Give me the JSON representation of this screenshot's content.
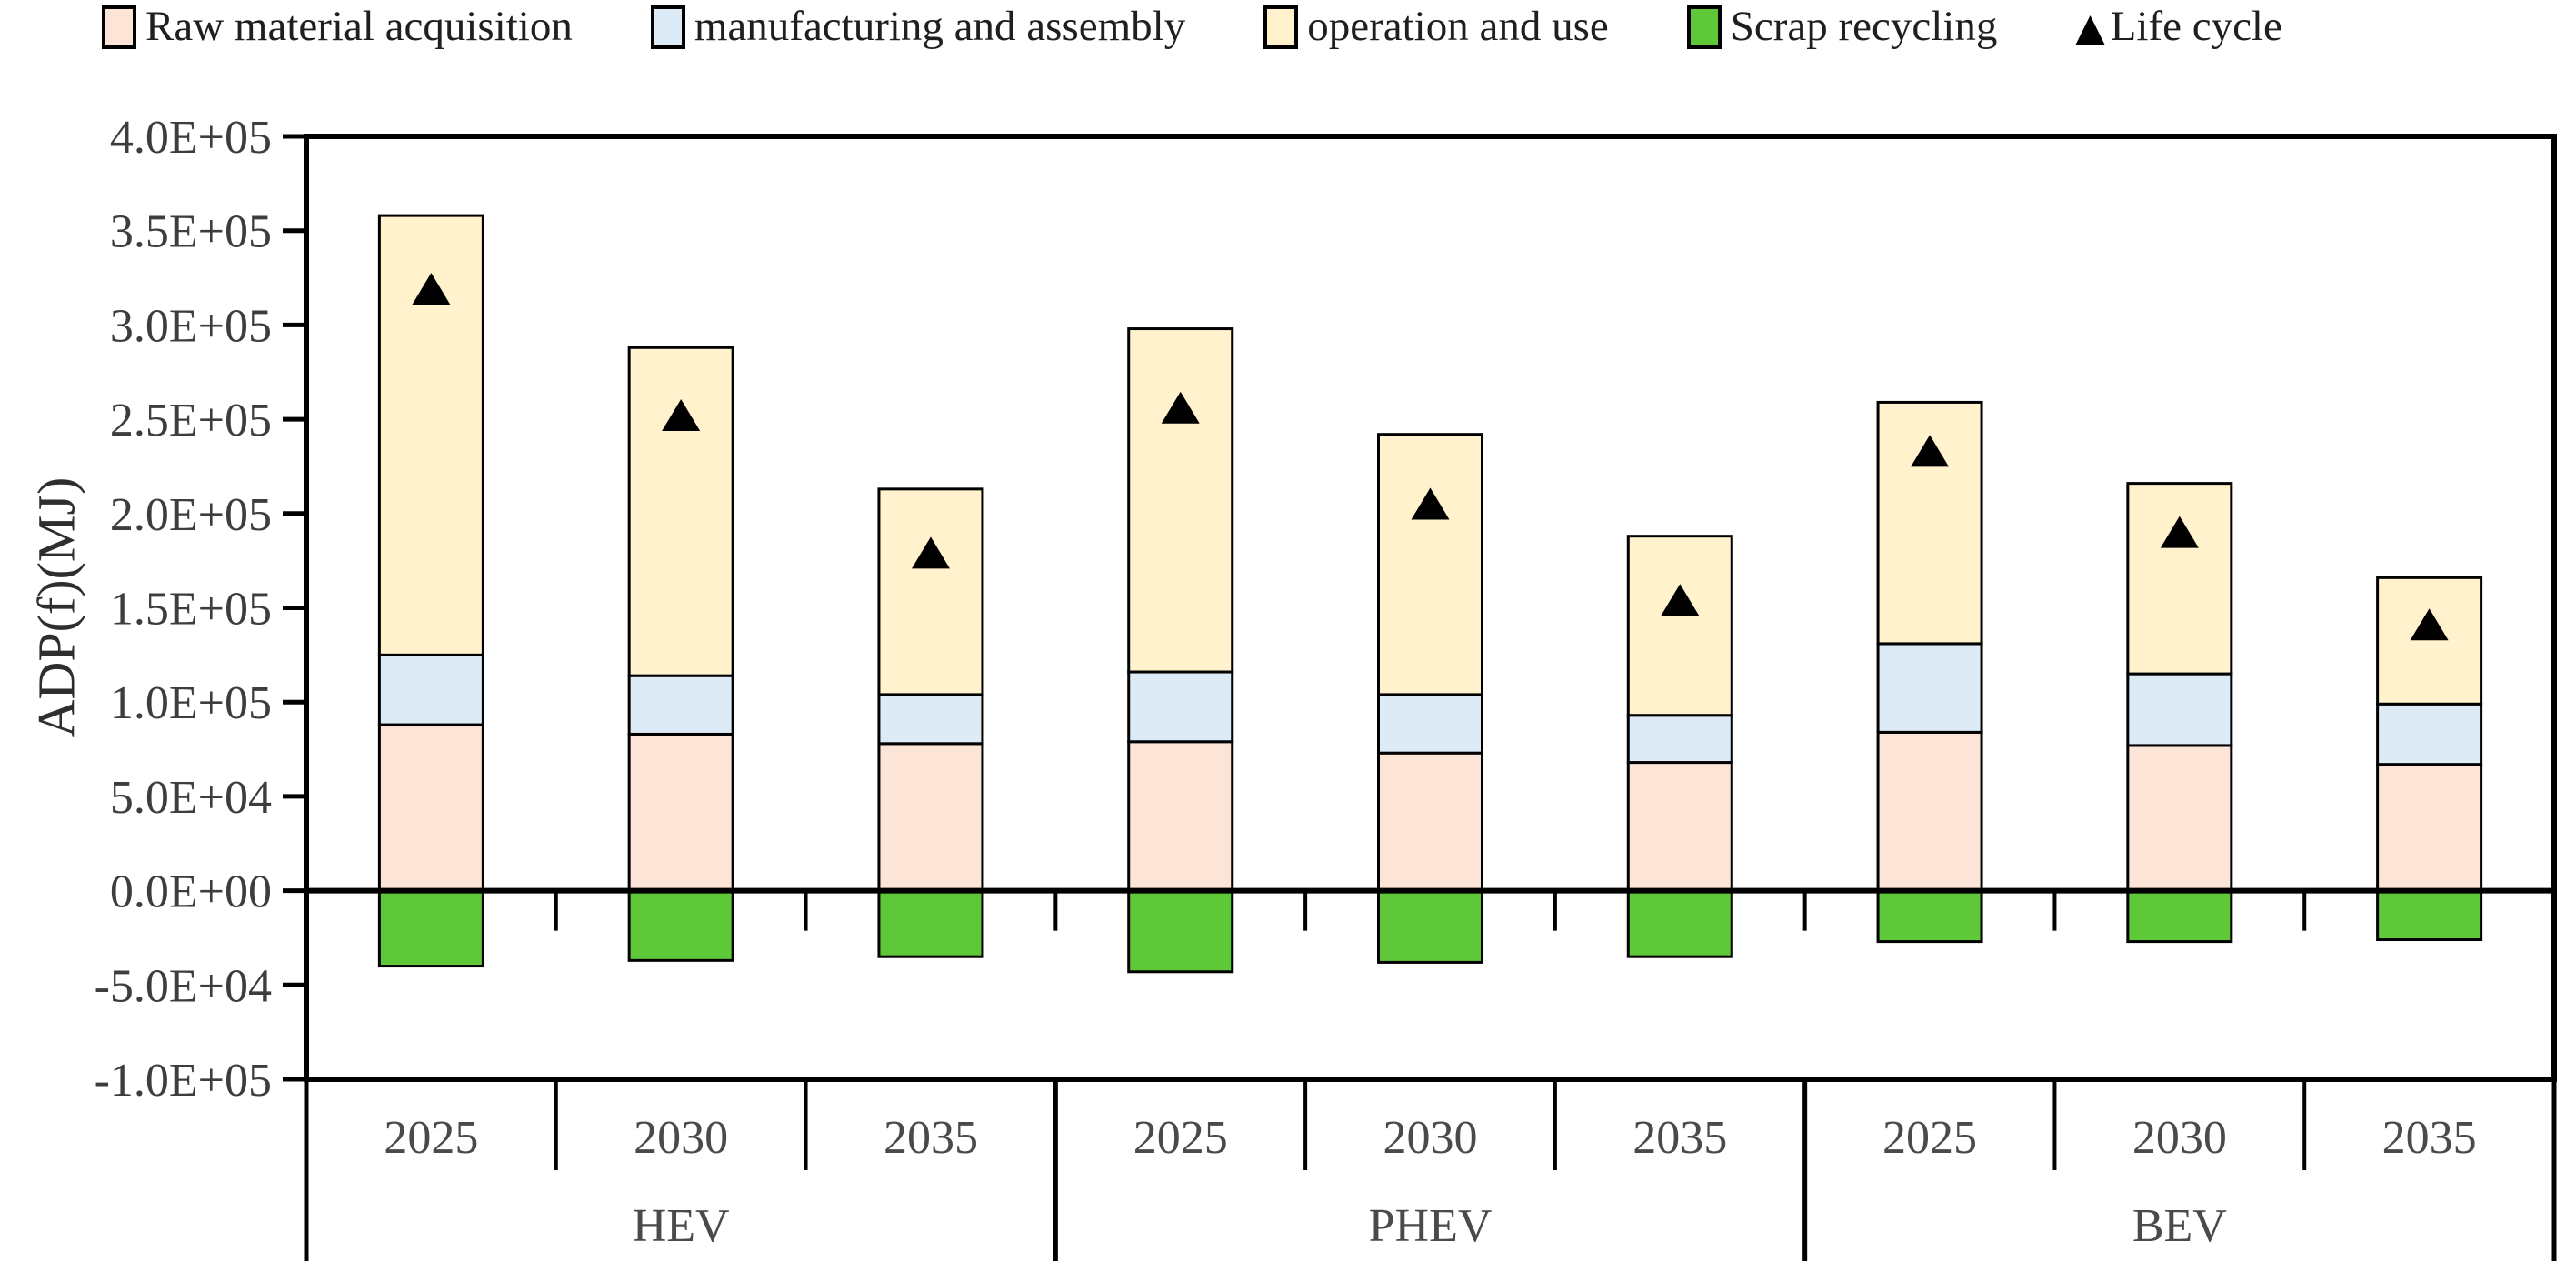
{
  "chart_data": {
    "type": "bar",
    "stacked": true,
    "title": "",
    "ylabel": "ADP(f)(MJ)",
    "ylim": [
      -100000,
      400000
    ],
    "grid": false,
    "legend_position": "top",
    "categories": [
      "2025",
      "2030",
      "2035",
      "2025",
      "2030",
      "2035",
      "2025",
      "2030",
      "2035"
    ],
    "groups": [
      {
        "label": "HEV"
      },
      {
        "label": "PHEV"
      },
      {
        "label": "BEV"
      }
    ],
    "y_ticks": [
      {
        "label": "4.0E+05",
        "value": 400000
      },
      {
        "label": "3.5E+05",
        "value": 350000
      },
      {
        "label": "3.0E+05",
        "value": 300000
      },
      {
        "label": "2.5E+05",
        "value": 250000
      },
      {
        "label": "2.0E+05",
        "value": 200000
      },
      {
        "label": "1.5E+05",
        "value": 150000
      },
      {
        "label": "1.0E+05",
        "value": 100000
      },
      {
        "label": "5.0E+04",
        "value": 50000
      },
      {
        "label": "0.0E+00",
        "value": 0
      },
      {
        "label": "-5.0E+04",
        "value": -50000
      },
      {
        "label": "-1.0E+05",
        "value": -100000
      }
    ],
    "series": [
      {
        "name": "Raw material acquisition",
        "type": "bar",
        "color": "#FCE4D6",
        "values": [
          88000,
          83000,
          78000,
          79000,
          73000,
          68000,
          84000,
          77000,
          67000
        ]
      },
      {
        "name": "manufacturing and assembly",
        "type": "bar",
        "color": "#DDEBF7",
        "values": [
          37000,
          31000,
          26000,
          37000,
          31000,
          25000,
          47000,
          38000,
          32000
        ]
      },
      {
        "name": "operation and use",
        "type": "bar",
        "color": "#FFF2CC",
        "values": [
          233000,
          174000,
          109000,
          182000,
          138000,
          95000,
          128000,
          101000,
          67000
        ]
      },
      {
        "name": "Scrap recycling",
        "type": "bar",
        "color": "#5FC838",
        "values": [
          -40000,
          -37000,
          -35000,
          -43000,
          -38000,
          -35000,
          -27000,
          -27000,
          -26000
        ]
      },
      {
        "name": "Life cycle",
        "type": "marker",
        "marker": "triangle",
        "color": "#000000",
        "values": [
          318000,
          251000,
          178000,
          255000,
          204000,
          153000,
          232000,
          189000,
          140000
        ]
      }
    ]
  }
}
